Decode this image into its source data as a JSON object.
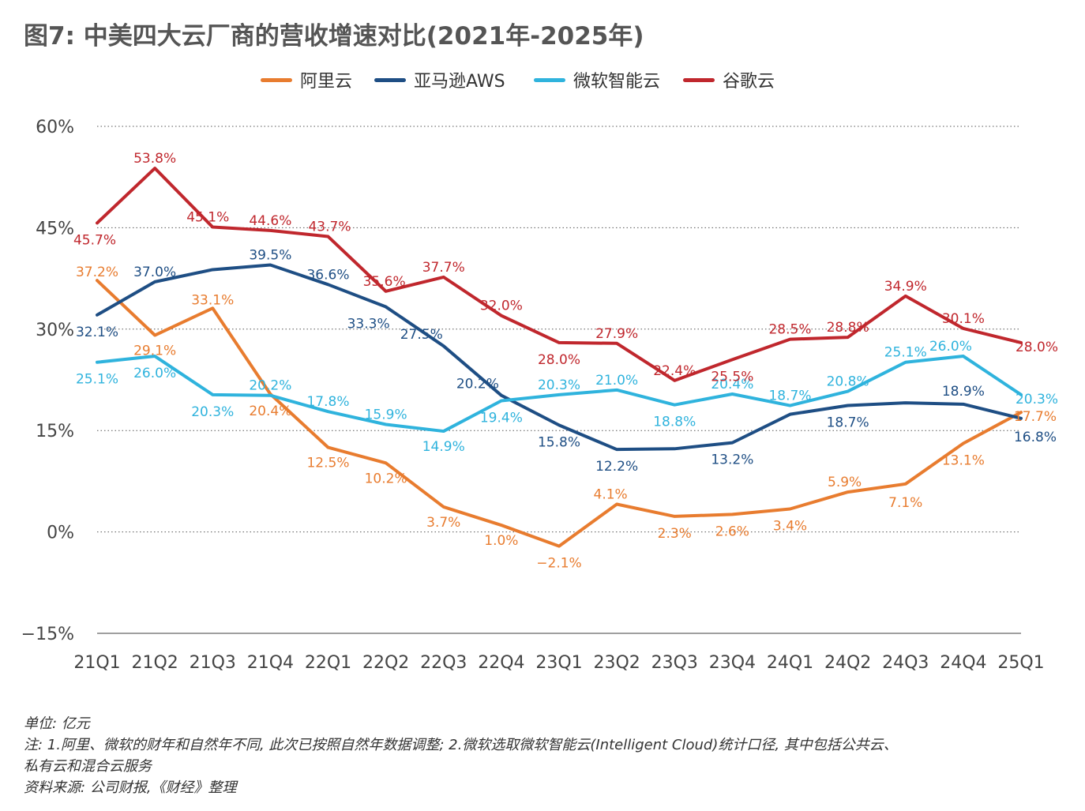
{
  "title": "图7: 中美四大云厂商的营收增速对比(2021年-2025年)",
  "notes": {
    "unit": "单位: 亿元",
    "note_line1": "注: 1.阿里、微软的财年和自然年不同, 此次已按照自然年数据调整; 2.微软选取微软智能云(Intelligent Cloud)统计口径, 其中包括公共云、",
    "note_line2": "私有云和混合云服务",
    "source": "资料来源: 公司财报,《财经》整理"
  },
  "chart_data": {
    "type": "line",
    "categories": [
      "21Q1",
      "21Q2",
      "21Q3",
      "21Q4",
      "22Q1",
      "22Q2",
      "22Q3",
      "22Q4",
      "23Q1",
      "23Q2",
      "23Q3",
      "23Q4",
      "24Q1",
      "24Q2",
      "24Q3",
      "24Q4",
      "25Q1"
    ],
    "ylim": [
      -15,
      60
    ],
    "yticks": [
      -15,
      0,
      15,
      30,
      45,
      60
    ],
    "ytick_labels": [
      "−15%",
      "0%",
      "15%",
      "30%",
      "45%",
      "60%"
    ],
    "grid": "horizontal dotted",
    "legend_position": "top-center",
    "series": [
      {
        "name": "阿里云",
        "color": "#e87c2f",
        "values": [
          37.2,
          29.1,
          33.1,
          20.4,
          12.5,
          10.2,
          3.7,
          1.0,
          -2.1,
          4.1,
          2.3,
          2.6,
          3.4,
          5.9,
          7.1,
          13.1,
          17.7
        ],
        "labels": [
          "37.2%",
          "29.1%",
          "33.1%",
          "20.4%",
          "12.5%",
          "10.2%",
          "3.7%",
          "1.0%",
          "−2.1%",
          "4.1%",
          "2.3%",
          "2.6%",
          "3.4%",
          "5.9%",
          "7.1%",
          "13.1%",
          "17.7%"
        ]
      },
      {
        "name": "亚马逊AWS",
        "color": "#1e4e84",
        "values": [
          32.1,
          37.0,
          38.8,
          39.5,
          36.6,
          33.3,
          27.5,
          20.2,
          15.8,
          12.2,
          12.3,
          13.2,
          17.4,
          18.7,
          19.1,
          18.9,
          16.8
        ],
        "labels": [
          "32.1%",
          "37.0%",
          "",
          "39.5%",
          "36.6%",
          "33.3%",
          "27.5%",
          "20.2%",
          "15.8%",
          "12.2%",
          "",
          "13.2%",
          "",
          "18.7%",
          "",
          "18.9%",
          "16.8%"
        ]
      },
      {
        "name": "微软智能云",
        "color": "#2fb3dd",
        "values": [
          25.1,
          26.0,
          20.3,
          20.2,
          17.8,
          15.9,
          14.9,
          19.4,
          20.3,
          21.0,
          18.8,
          20.4,
          18.7,
          20.8,
          25.1,
          26.0,
          20.3
        ],
        "labels": [
          "25.1%",
          "26.0%",
          "20.3%",
          "20.2%",
          "17.8%",
          "15.9%",
          "14.9%",
          "19.4%",
          "20.3%",
          "21.0%",
          "18.8%",
          "20.4%",
          "18.7%",
          "20.8%",
          "25.1%",
          "26.0%",
          "20.3%"
        ]
      },
      {
        "name": "谷歌云",
        "color": "#c0272d",
        "values": [
          45.7,
          53.8,
          45.1,
          44.6,
          43.7,
          35.6,
          37.7,
          32.0,
          28.0,
          27.9,
          22.4,
          25.5,
          28.5,
          28.8,
          34.9,
          30.1,
          28.0
        ],
        "labels": [
          "45.7%",
          "53.8%",
          "45.1%",
          "44.6%",
          "43.7%",
          "35.6%",
          "37.7%",
          "32.0%",
          "28.0%",
          "27.9%",
          "22.4%",
          "25.5%",
          "28.5%",
          "28.8%",
          "34.9%",
          "30.1%",
          "28.0%"
        ]
      }
    ]
  }
}
